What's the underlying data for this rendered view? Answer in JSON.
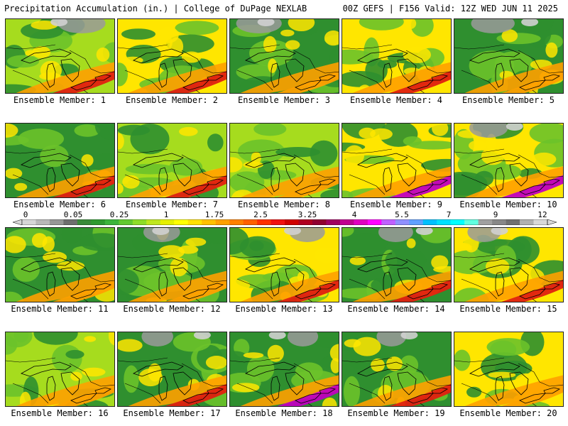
{
  "header": {
    "title": "Precipitation Accumulation (in.) | College of DuPage NEXLAB",
    "run_info": "00Z GEFS | F156 Valid: 12Z WED JUN 11 2025"
  },
  "members": [
    {
      "label": "Ensemble Member: 1",
      "dominant": "yellow-green",
      "heavy_band": "red",
      "dry_north": "gray"
    },
    {
      "label": "Ensemble Member: 2",
      "dominant": "yellow",
      "heavy_band": "red",
      "dry_north": "none"
    },
    {
      "label": "Ensemble Member: 3",
      "dominant": "green",
      "heavy_band": "orange",
      "dry_north": "gray"
    },
    {
      "label": "Ensemble Member: 4",
      "dominant": "yellow",
      "heavy_band": "red",
      "dry_north": "none"
    },
    {
      "label": "Ensemble Member: 5",
      "dominant": "green",
      "heavy_band": "orange",
      "dry_north": "gray"
    },
    {
      "label": "Ensemble Member: 6",
      "dominant": "green",
      "heavy_band": "red",
      "dry_north": "none"
    },
    {
      "label": "Ensemble Member: 7",
      "dominant": "yellow-green",
      "heavy_band": "red",
      "dry_north": "none"
    },
    {
      "label": "Ensemble Member: 8",
      "dominant": "yellow-green",
      "heavy_band": "orange",
      "dry_north": "none"
    },
    {
      "label": "Ensemble Member: 9",
      "dominant": "yellow",
      "heavy_band": "magenta",
      "dry_north": "none"
    },
    {
      "label": "Ensemble Member: 10",
      "dominant": "yellow",
      "heavy_band": "magenta",
      "dry_north": "gray"
    },
    {
      "label": "Ensemble Member: 11",
      "dominant": "green",
      "heavy_band": "orange",
      "dry_north": "none"
    },
    {
      "label": "Ensemble Member: 12",
      "dominant": "green",
      "heavy_band": "orange",
      "dry_north": "gray"
    },
    {
      "label": "Ensemble Member: 13",
      "dominant": "yellow",
      "heavy_band": "red",
      "dry_north": "gray"
    },
    {
      "label": "Ensemble Member: 14",
      "dominant": "green",
      "heavy_band": "red",
      "dry_north": "gray"
    },
    {
      "label": "Ensemble Member: 15",
      "dominant": "yellow",
      "heavy_band": "red",
      "dry_north": "gray"
    },
    {
      "label": "Ensemble Member: 16",
      "dominant": "yellow-green",
      "heavy_band": "orange",
      "dry_north": "none"
    },
    {
      "label": "Ensemble Member: 17",
      "dominant": "green",
      "heavy_band": "red",
      "dry_north": "gray"
    },
    {
      "label": "Ensemble Member: 18",
      "dominant": "green",
      "heavy_band": "magenta",
      "dry_north": "gray"
    },
    {
      "label": "Ensemble Member: 19",
      "dominant": "green",
      "heavy_band": "red",
      "dry_north": "gray"
    },
    {
      "label": "Ensemble Member: 20",
      "dominant": "yellow",
      "heavy_band": "orange",
      "dry_north": "none"
    }
  ],
  "colorbar": {
    "tick_labels": [
      "0",
      "0.05",
      "0.25",
      "1",
      "1.75",
      "2.5",
      "3.25",
      "4",
      "5.5",
      "7",
      "9",
      "12"
    ],
    "colors": [
      "#d6d6d6",
      "#b8b8b8",
      "#969696",
      "#6e6e6e",
      "#3a8a3a",
      "#2f9a30",
      "#3cb43c",
      "#62c830",
      "#8edc28",
      "#bfe61e",
      "#e6f000",
      "#ffff00",
      "#ffe000",
      "#ffc000",
      "#ffa000",
      "#ff8000",
      "#ff6000",
      "#ff3000",
      "#f01010",
      "#d00000",
      "#b00020",
      "#900030",
      "#a00060",
      "#c00090",
      "#e000c0",
      "#ff00ff",
      "#c060ff",
      "#9090ff",
      "#60a0ff",
      "#00c0ff",
      "#00e0ff",
      "#00ffff",
      "#60ffe0",
      "#a0a0a0",
      "#888888",
      "#707070",
      "#b0b0b0",
      "#d8d8d8"
    ]
  },
  "palette": {
    "gray": "#9a9a9a",
    "green": "#2f8f2f",
    "light-green": "#6cc22a",
    "yellow-green": "#a6dc1e",
    "yellow": "#ffe600",
    "orange": "#ffa000",
    "red": "#e02010",
    "magenta": "#c000c0"
  }
}
